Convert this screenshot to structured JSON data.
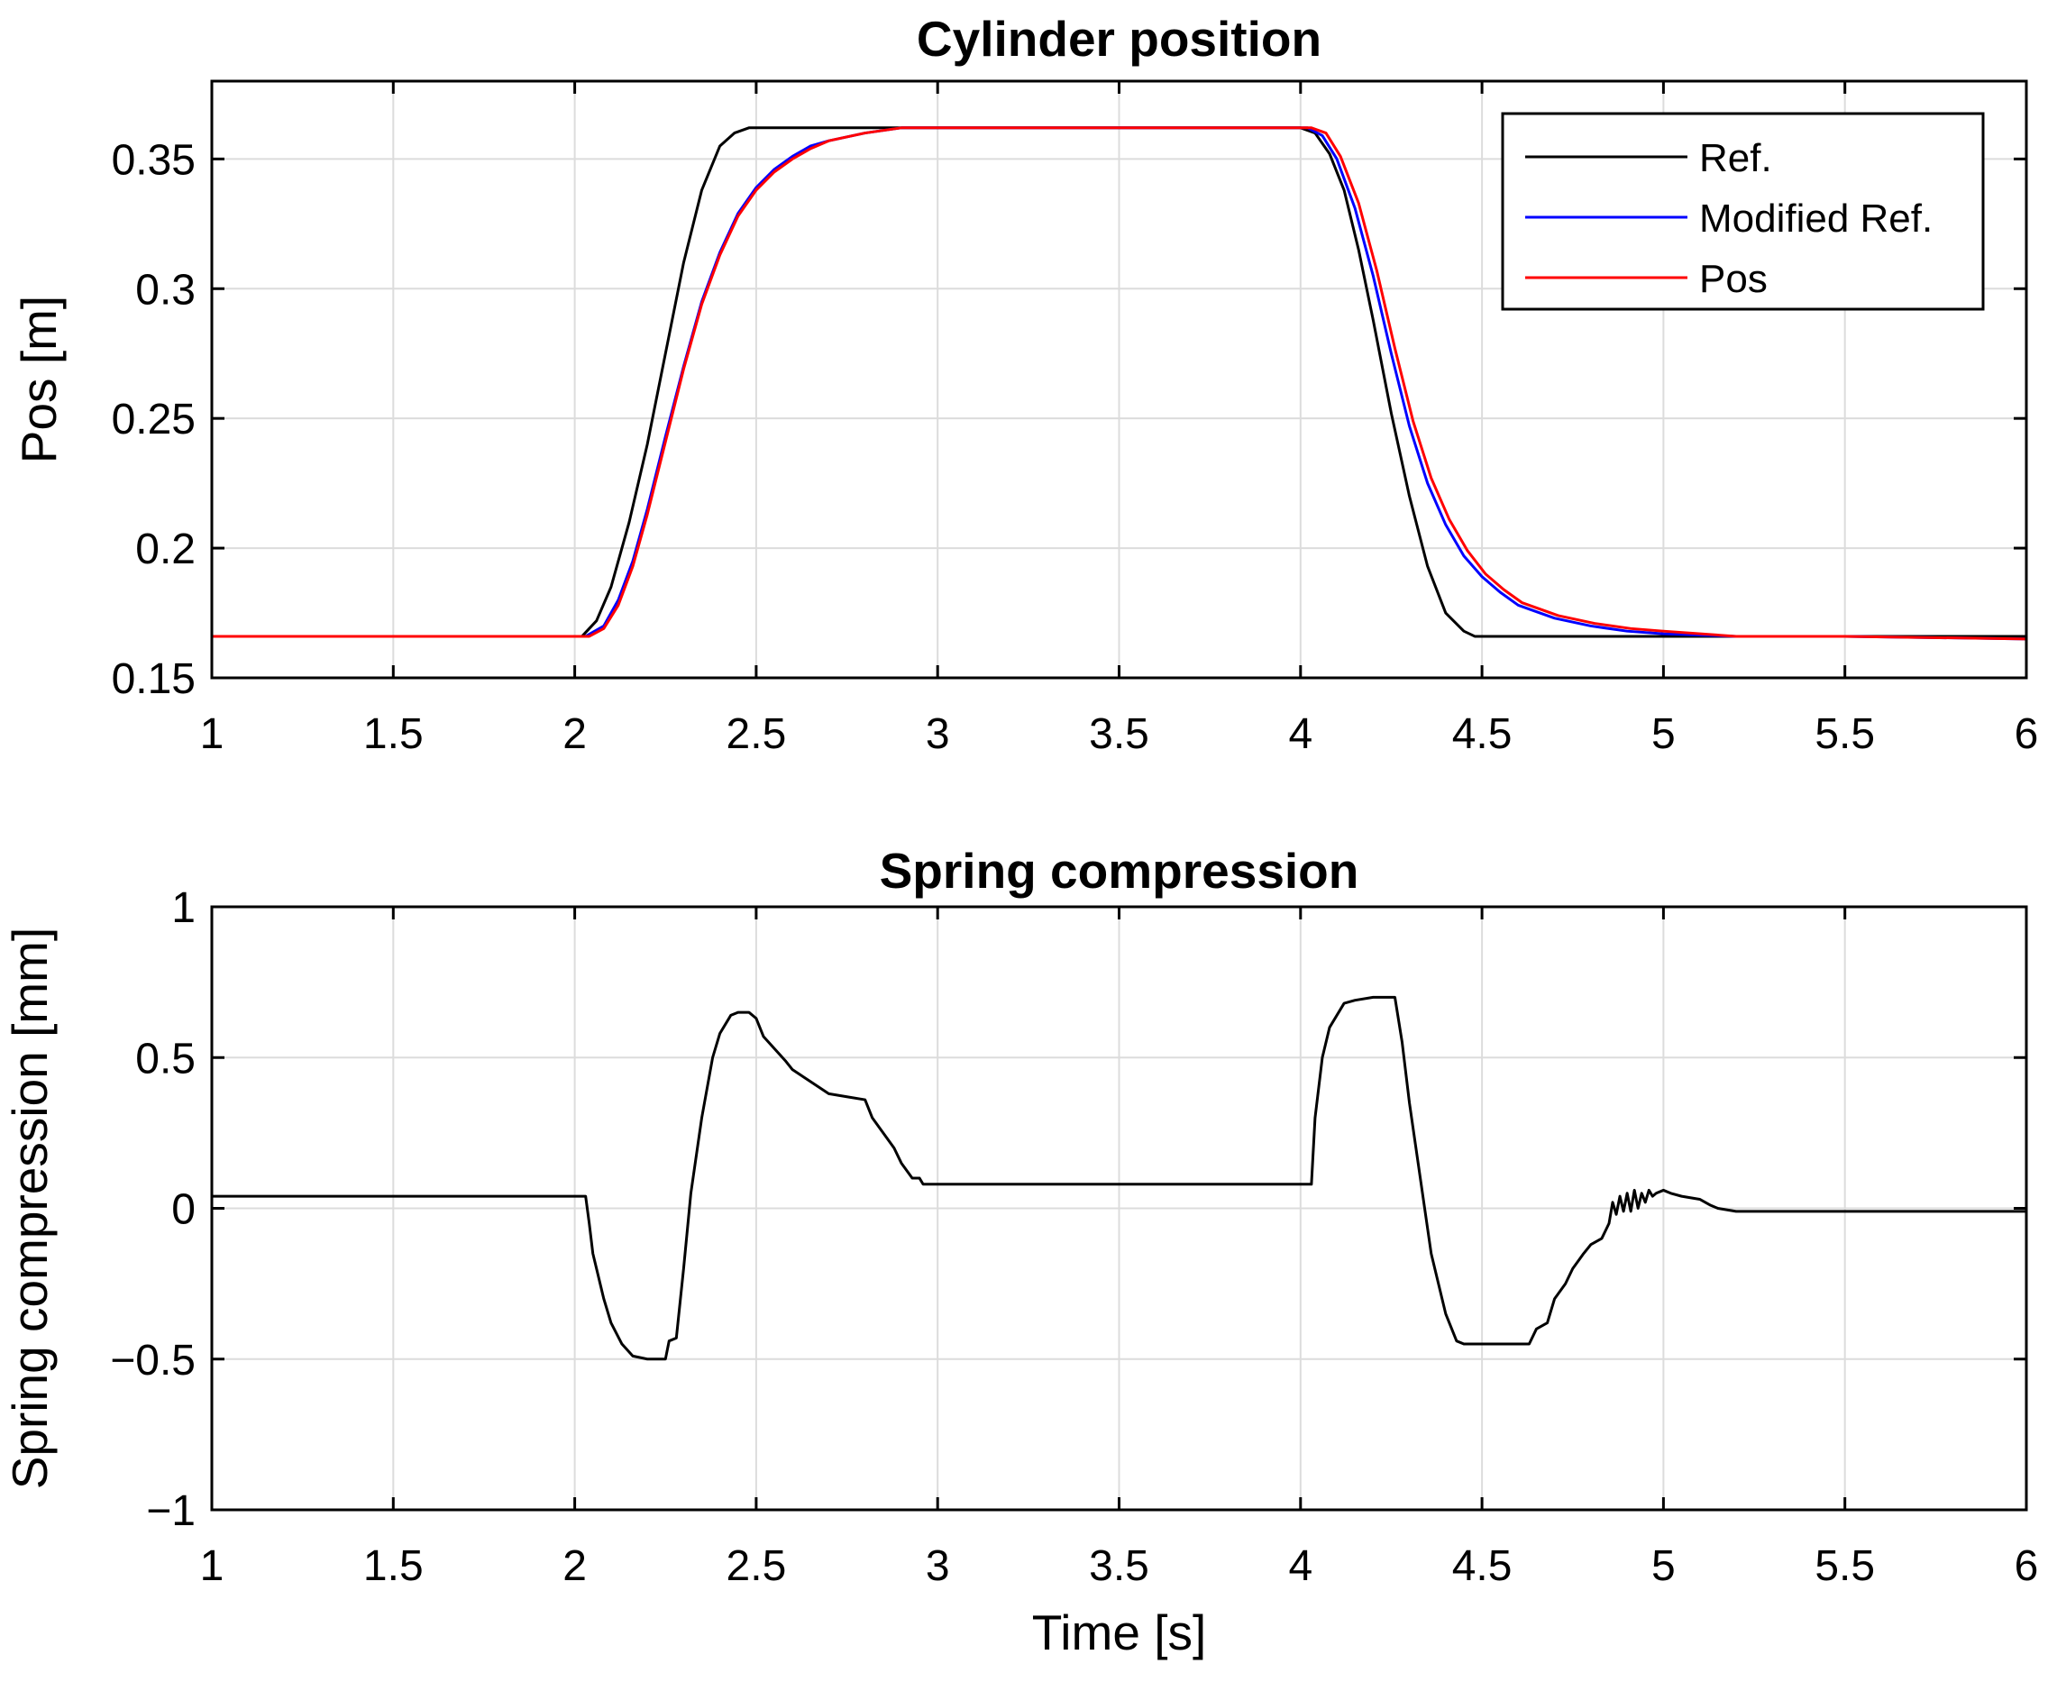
{
  "chart_data": [
    {
      "type": "line",
      "title": "Cylinder position",
      "xlabel": "",
      "ylabel": "Pos [m]",
      "xlim": [
        1,
        6
      ],
      "ylim": [
        0.15,
        0.38
      ],
      "xticks": [
        1,
        1.5,
        2,
        2.5,
        3,
        3.5,
        4,
        4.5,
        5,
        5.5,
        6
      ],
      "xtick_labels": [
        "1",
        "1.5",
        "2",
        "2.5",
        "3",
        "3.5",
        "4",
        "4.5",
        "5",
        "5.5",
        "6"
      ],
      "yticks": [
        0.15,
        0.2,
        0.25,
        0.3,
        0.35
      ],
      "ytick_labels": [
        "0.15",
        "0.2",
        "0.25",
        "0.3",
        "0.35"
      ],
      "grid": true,
      "legend_position": "top-right",
      "series": [
        {
          "name": "Ref.",
          "color": "#000000",
          "x": [
            1,
            2.02,
            2.06,
            2.1,
            2.15,
            2.2,
            2.25,
            2.3,
            2.35,
            2.4,
            2.44,
            2.48,
            2.5,
            4.0,
            4.04,
            4.08,
            4.12,
            4.16,
            4.2,
            4.25,
            4.3,
            4.35,
            4.4,
            4.45,
            4.48,
            6
          ],
          "y": [
            0.166,
            0.166,
            0.172,
            0.185,
            0.21,
            0.24,
            0.275,
            0.31,
            0.338,
            0.355,
            0.36,
            0.362,
            0.362,
            0.362,
            0.36,
            0.352,
            0.338,
            0.315,
            0.288,
            0.252,
            0.22,
            0.193,
            0.175,
            0.168,
            0.166,
            0.166
          ]
        },
        {
          "name": "Modified Ref.",
          "color": "#0000ff",
          "x": [
            1,
            2.03,
            2.08,
            2.12,
            2.16,
            2.2,
            2.25,
            2.3,
            2.35,
            2.4,
            2.45,
            2.5,
            2.55,
            2.6,
            2.65,
            2.7,
            2.8,
            2.9,
            3.0,
            4.02,
            4.06,
            4.1,
            4.15,
            4.2,
            4.25,
            4.3,
            4.35,
            4.4,
            4.45,
            4.5,
            4.55,
            4.6,
            4.7,
            4.8,
            4.9,
            5.0,
            5.2,
            5.5,
            6
          ],
          "y": [
            0.166,
            0.166,
            0.17,
            0.18,
            0.195,
            0.215,
            0.243,
            0.27,
            0.295,
            0.314,
            0.329,
            0.339,
            0.346,
            0.351,
            0.355,
            0.357,
            0.36,
            0.362,
            0.362,
            0.362,
            0.359,
            0.35,
            0.331,
            0.305,
            0.275,
            0.247,
            0.225,
            0.209,
            0.197,
            0.189,
            0.183,
            0.178,
            0.173,
            0.17,
            0.168,
            0.167,
            0.166,
            0.166,
            0.165
          ]
        },
        {
          "name": "Pos",
          "color": "#ff0000",
          "x": [
            1,
            2.04,
            2.08,
            2.12,
            2.16,
            2.2,
            2.25,
            2.3,
            2.35,
            2.4,
            2.45,
            2.5,
            2.55,
            2.6,
            2.65,
            2.7,
            2.8,
            2.9,
            3.0,
            4.03,
            4.07,
            4.11,
            4.16,
            4.21,
            4.26,
            4.31,
            4.36,
            4.41,
            4.46,
            4.51,
            4.56,
            4.61,
            4.71,
            4.81,
            4.91,
            5.0,
            5.2,
            5.5,
            6
          ],
          "y": [
            0.166,
            0.166,
            0.169,
            0.178,
            0.193,
            0.213,
            0.241,
            0.269,
            0.294,
            0.313,
            0.328,
            0.338,
            0.345,
            0.35,
            0.354,
            0.357,
            0.36,
            0.362,
            0.362,
            0.362,
            0.36,
            0.351,
            0.333,
            0.307,
            0.277,
            0.249,
            0.227,
            0.211,
            0.199,
            0.19,
            0.184,
            0.179,
            0.174,
            0.171,
            0.169,
            0.168,
            0.166,
            0.166,
            0.165
          ]
        }
      ]
    },
    {
      "type": "line",
      "title": "Spring compression",
      "xlabel": "Time [s]",
      "ylabel": "Spring compression [mm]",
      "xlim": [
        1,
        6
      ],
      "ylim": [
        -1,
        1
      ],
      "xticks": [
        1,
        1.5,
        2,
        2.5,
        3,
        3.5,
        4,
        4.5,
        5,
        5.5,
        6
      ],
      "xtick_labels": [
        "1",
        "1.5",
        "2",
        "2.5",
        "3",
        "3.5",
        "4",
        "4.5",
        "5",
        "5.5",
        "6"
      ],
      "yticks": [
        -1,
        -0.5,
        0,
        0.5,
        1
      ],
      "ytick_labels": [
        "−1",
        "−0.5",
        "0",
        "0.5",
        "1"
      ],
      "grid": true,
      "series": [
        {
          "name": "Spring compression",
          "color": "#000000",
          "x": [
            1,
            2.03,
            2.04,
            2.05,
            2.06,
            2.08,
            2.1,
            2.13,
            2.16,
            2.2,
            2.25,
            2.26,
            2.28,
            2.3,
            2.32,
            2.35,
            2.38,
            2.4,
            2.43,
            2.45,
            2.48,
            2.5,
            2.52,
            2.55,
            2.58,
            2.6,
            2.65,
            2.7,
            2.75,
            2.8,
            2.82,
            2.85,
            2.88,
            2.9,
            2.93,
            2.95,
            2.96,
            4.02,
            4.03,
            4.04,
            4.06,
            4.08,
            4.1,
            4.12,
            4.15,
            4.2,
            4.26,
            4.28,
            4.3,
            4.33,
            4.36,
            4.4,
            4.43,
            4.45,
            4.5,
            4.55,
            4.63,
            4.65,
            4.68,
            4.7,
            4.73,
            4.75,
            4.78,
            4.8,
            4.83,
            4.85,
            4.86,
            4.87,
            4.88,
            4.89,
            4.9,
            4.91,
            4.92,
            4.93,
            4.94,
            4.95,
            4.96,
            4.97,
            4.98,
            5.0,
            5.02,
            5.05,
            5.1,
            5.13,
            5.15,
            5.2,
            5.3,
            5.5,
            5.7,
            6
          ],
          "y": [
            0.04,
            0.04,
            -0.05,
            -0.15,
            -0.2,
            -0.3,
            -0.38,
            -0.45,
            -0.49,
            -0.5,
            -0.5,
            -0.44,
            -0.43,
            -0.2,
            0.05,
            0.3,
            0.5,
            0.58,
            0.64,
            0.65,
            0.65,
            0.63,
            0.57,
            0.53,
            0.49,
            0.46,
            0.42,
            0.38,
            0.37,
            0.36,
            0.3,
            0.25,
            0.2,
            0.15,
            0.1,
            0.1,
            0.08,
            0.08,
            0.08,
            0.3,
            0.5,
            0.6,
            0.64,
            0.68,
            0.69,
            0.7,
            0.7,
            0.55,
            0.35,
            0.1,
            -0.15,
            -0.35,
            -0.44,
            -0.45,
            -0.45,
            -0.45,
            -0.45,
            -0.4,
            -0.38,
            -0.3,
            -0.25,
            -0.2,
            -0.15,
            -0.12,
            -0.1,
            -0.05,
            0.02,
            -0.02,
            0.04,
            -0.01,
            0.05,
            -0.01,
            0.06,
            0.0,
            0.05,
            0.02,
            0.06,
            0.04,
            0.05,
            0.06,
            0.05,
            0.04,
            0.03,
            0.01,
            0.0,
            -0.01,
            -0.01,
            -0.01,
            -0.01,
            -0.01
          ]
        }
      ]
    }
  ]
}
